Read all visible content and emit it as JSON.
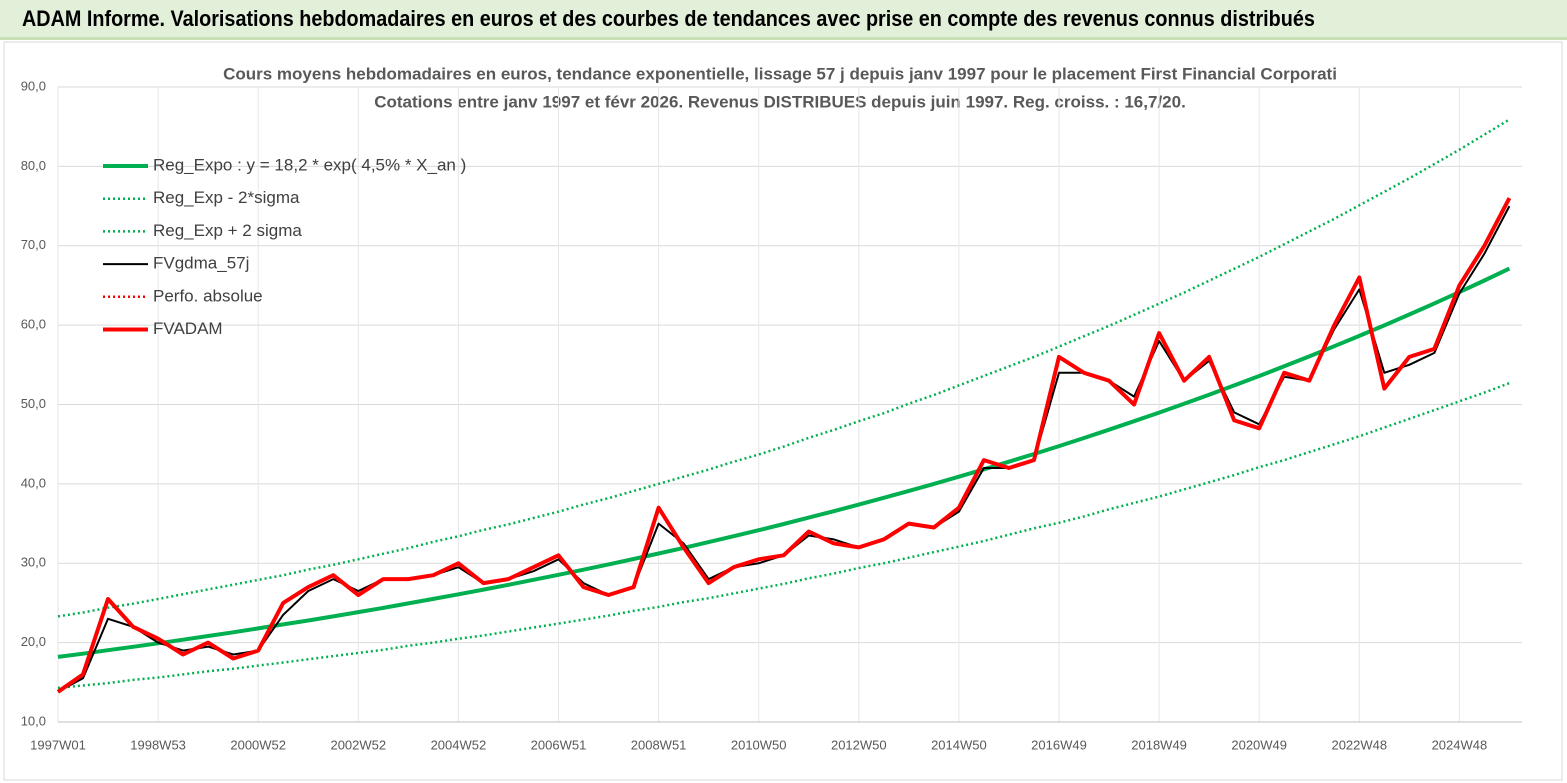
{
  "header": {
    "title": "ADAM Informe. Valorisations hebdomadaires en euros et des courbes de tendances avec prise en compte des revenus connus distribués"
  },
  "chart_data": {
    "type": "line",
    "title": "Cours moyens hebdomadaires en euros, tendance exponentielle, lissage 57 j depuis janv 1997 pour le placement First Financial Corporati",
    "subtitle": "Cotations entre janv 1997 et févr 2026. Revenus DISTRIBUES depuis juin 1997. Reg. croiss. : 16,7/20.",
    "categories": [
      "1997W01",
      null,
      null,
      null,
      "1998W53",
      null,
      null,
      null,
      "2000W52",
      null,
      null,
      null,
      "2002W52",
      null,
      null,
      null,
      "2004W52",
      null,
      null,
      null,
      "2006W51",
      null,
      null,
      null,
      "2008W51",
      null,
      null,
      null,
      "2010W50",
      null,
      null,
      null,
      "2012W50",
      null,
      null,
      null,
      "2014W50",
      null,
      null,
      null,
      "2016W49",
      null,
      null,
      null,
      "2018W49",
      null,
      null,
      null,
      "2020W49",
      null,
      null,
      null,
      "2022W48",
      null,
      null,
      null,
      "2024W48",
      null,
      null
    ],
    "ylim": [
      10,
      90
    ],
    "yticks": [
      {
        "value": 10,
        "label": "10,0"
      },
      {
        "value": 20,
        "label": "20,0"
      },
      {
        "value": 30,
        "label": "30,0"
      },
      {
        "value": 40,
        "label": "40,0"
      },
      {
        "value": 50,
        "label": "50,0"
      },
      {
        "value": 60,
        "label": "60,0"
      },
      {
        "value": 70,
        "label": "70,0"
      },
      {
        "value": 80,
        "label": "80,0"
      },
      {
        "value": 90,
        "label": "90,0"
      }
    ],
    "grid": true,
    "series": [
      {
        "name": "Reg_Expo : y = 18,2 * exp( 4,5% *  X_an )",
        "color": "#00b050",
        "style": "bold",
        "values": [
          18.2,
          18.61,
          19.04,
          19.47,
          19.91,
          20.37,
          20.83,
          21.3,
          21.79,
          22.29,
          22.79,
          23.31,
          23.84,
          24.38,
          24.94,
          25.51,
          26.09,
          26.68,
          27.29,
          27.91,
          28.54,
          29.19,
          29.86,
          30.54,
          31.23,
          31.94,
          32.67,
          33.41,
          34.17,
          34.95,
          35.75,
          36.56,
          37.39,
          38.24,
          39.11,
          40.0,
          40.91,
          41.84,
          42.79,
          43.77,
          44.76,
          45.78,
          46.83,
          47.89,
          48.98,
          50.1,
          51.24,
          52.4,
          53.59,
          54.81,
          56.06,
          57.34,
          58.64,
          59.97,
          61.34,
          62.74,
          64.16,
          65.62,
          67.12
        ]
      },
      {
        "name": "Reg_Exp - 2*sigma",
        "color": "#00b050",
        "style": "dotted",
        "values": [
          14.3,
          14.6,
          14.9,
          15.3,
          15.6,
          16.0,
          16.4,
          16.7,
          17.1,
          17.5,
          17.9,
          18.3,
          18.7,
          19.1,
          19.6,
          20.0,
          20.5,
          20.9,
          21.4,
          21.9,
          22.4,
          22.9,
          23.4,
          24.0,
          24.5,
          25.1,
          25.6,
          26.2,
          26.8,
          27.4,
          28.1,
          28.7,
          29.4,
          30.0,
          30.7,
          31.4,
          32.1,
          32.8,
          33.6,
          34.4,
          35.1,
          35.9,
          36.8,
          37.6,
          38.4,
          39.3,
          40.2,
          41.1,
          42.1,
          43.0,
          44.0,
          45.0,
          46.0,
          47.1,
          48.2,
          49.3,
          50.4,
          51.5,
          52.7
        ]
      },
      {
        "name": "Reg_Exp + 2 sigma",
        "color": "#00b050",
        "style": "dotted",
        "values": [
          23.3,
          23.8,
          24.4,
          24.9,
          25.5,
          26.1,
          26.7,
          27.3,
          27.9,
          28.5,
          29.2,
          29.8,
          30.5,
          31.2,
          31.9,
          32.7,
          33.4,
          34.2,
          34.9,
          35.7,
          36.5,
          37.4,
          38.2,
          39.1,
          40.0,
          40.9,
          41.8,
          42.8,
          43.7,
          44.7,
          45.8,
          46.8,
          47.9,
          48.9,
          50.1,
          51.2,
          52.4,
          53.6,
          54.8,
          56.0,
          57.3,
          58.6,
          59.9,
          61.3,
          62.7,
          64.1,
          65.6,
          67.1,
          68.6,
          70.2,
          71.8,
          73.4,
          75.1,
          76.8,
          78.5,
          80.3,
          82.1,
          84.0,
          85.9
        ]
      },
      {
        "name": "FVgdma_57j",
        "color": "#000000",
        "style": "solid",
        "values": [
          13.8,
          15.5,
          23,
          22,
          20,
          19,
          19.5,
          18.5,
          19,
          23.5,
          26.5,
          28,
          26.5,
          28,
          28,
          28.5,
          29.5,
          27.5,
          28,
          29,
          30.5,
          27.5,
          26,
          27,
          35,
          32.5,
          28,
          29.5,
          30,
          31,
          33.5,
          33,
          32,
          33,
          35,
          34.5,
          36.5,
          42,
          42,
          43,
          54,
          54,
          53,
          51,
          58,
          53,
          55.5,
          49,
          47.5,
          53.5,
          53,
          59.5,
          64.5,
          54,
          55,
          56.5,
          64,
          69,
          75
        ]
      },
      {
        "name": "Perfo. absolue",
        "color": "#ff0000",
        "style": "dotted",
        "values": [
          13.8,
          16,
          25.5,
          22,
          20.5,
          18.5,
          20,
          18,
          19,
          25,
          27,
          28.5,
          26,
          28,
          28,
          28.5,
          30,
          27.5,
          28,
          29.5,
          31,
          27,
          26,
          27,
          37,
          32,
          27.5,
          29.5,
          30.5,
          31,
          34,
          32.5,
          32,
          33,
          35,
          34.5,
          37,
          43,
          42,
          43,
          56,
          54,
          53,
          50,
          59,
          53,
          56,
          48,
          47,
          54,
          53,
          60,
          66,
          52,
          56,
          57,
          65,
          70,
          76
        ]
      },
      {
        "name": "FVADAM",
        "color": "#ff0000",
        "style": "bold",
        "values": [
          13.8,
          16,
          25.5,
          22,
          20.5,
          18.5,
          20,
          18,
          19,
          25,
          27,
          28.5,
          26,
          28,
          28,
          28.5,
          30,
          27.5,
          28,
          29.5,
          31,
          27,
          26,
          27,
          37,
          32,
          27.5,
          29.5,
          30.5,
          31,
          34,
          32.5,
          32,
          33,
          35,
          34.5,
          37,
          43,
          42,
          43,
          56,
          54,
          53,
          50,
          59,
          53,
          56,
          48,
          47,
          54,
          53,
          60,
          66,
          52,
          56,
          57,
          65,
          70,
          76
        ]
      }
    ]
  }
}
